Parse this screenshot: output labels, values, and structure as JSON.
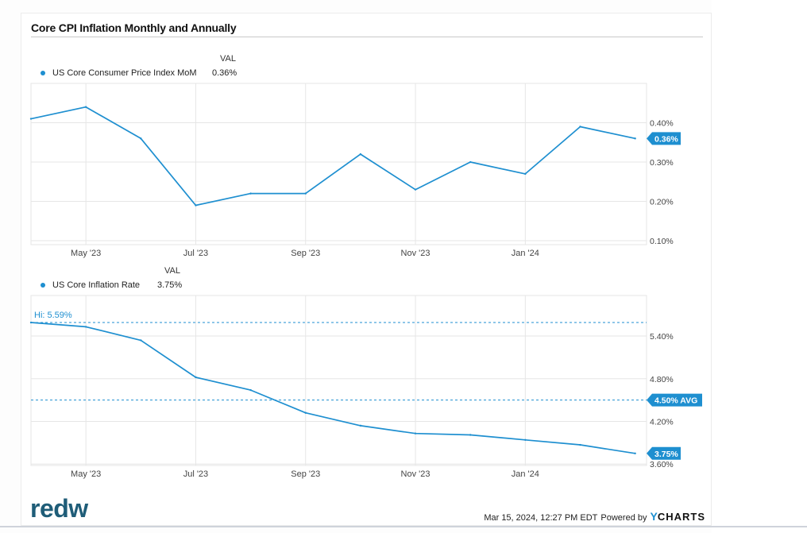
{
  "title": "Core CPI Inflation Monthly and Annually",
  "colors": {
    "line": "#1e8fd0",
    "grid": "#e6e6e6",
    "label_bg": "#1e8fd0"
  },
  "logo_text": "redw",
  "footer": {
    "timestamp": "Mar 15, 2024, 12:27 PM EDT",
    "powered_by": "Powered by",
    "brand_y": "Y",
    "brand_rest": "CHARTS"
  },
  "chart_data": [
    {
      "type": "line",
      "legend_header": "VAL",
      "series": [
        {
          "name": "US Core Consumer Price Index MoM",
          "display_value": "0.36%",
          "x": [
            "Apr '23",
            "May '23",
            "Jun '23",
            "Jul '23",
            "Aug '23",
            "Sep '23",
            "Oct '23",
            "Nov '23",
            "Dec '23",
            "Jan '24",
            "Feb '24",
            "Mar '24"
          ],
          "values": [
            0.41,
            0.44,
            0.36,
            0.19,
            0.22,
            0.22,
            0.32,
            0.23,
            0.3,
            0.27,
            0.39,
            0.36
          ]
        }
      ],
      "ylim": [
        0.09,
        0.5
      ],
      "yticks": [
        {
          "value": 0.4,
          "label": "0.40%"
        },
        {
          "value": 0.3,
          "label": "0.30%"
        },
        {
          "value": 0.2,
          "label": "0.20%"
        },
        {
          "value": 0.1,
          "label": "0.10%"
        }
      ],
      "xticks": [
        {
          "index": 1,
          "label": "May '23"
        },
        {
          "index": 3,
          "label": "Jul '23"
        },
        {
          "index": 5,
          "label": "Sep '23"
        },
        {
          "index": 7,
          "label": "Nov '23"
        },
        {
          "index": 9,
          "label": "Jan '24"
        }
      ],
      "last_value_label": "0.36%"
    },
    {
      "type": "line",
      "legend_header": "VAL",
      "series": [
        {
          "name": "US Core Inflation Rate",
          "display_value": "3.75%",
          "x": [
            "Apr '23",
            "May '23",
            "Jun '23",
            "Jul '23",
            "Aug '23",
            "Sep '23",
            "Oct '23",
            "Nov '23",
            "Dec '23",
            "Jan '24",
            "Feb '24",
            "Mar '24"
          ],
          "values": [
            5.59,
            5.53,
            5.34,
            4.82,
            4.64,
            4.32,
            4.14,
            4.03,
            4.01,
            3.94,
            3.87,
            3.75
          ]
        }
      ],
      "ylim": [
        3.58,
        5.97
      ],
      "yticks": [
        {
          "value": 5.4,
          "label": "5.40%"
        },
        {
          "value": 4.8,
          "label": "4.80%"
        },
        {
          "value": 4.2,
          "label": "4.20%"
        },
        {
          "value": 3.6,
          "label": "3.60%"
        }
      ],
      "xticks": [
        {
          "index": 1,
          "label": "May '23"
        },
        {
          "index": 3,
          "label": "Jul '23"
        },
        {
          "index": 5,
          "label": "Sep '23"
        },
        {
          "index": 7,
          "label": "Nov '23"
        },
        {
          "index": 9,
          "label": "Jan '24"
        }
      ],
      "hi": {
        "value": 5.59,
        "label": "Hi: 5.59%"
      },
      "avg": {
        "value": 4.5,
        "label": "4.50% AVG"
      },
      "last_value_label": "3.75%"
    }
  ]
}
